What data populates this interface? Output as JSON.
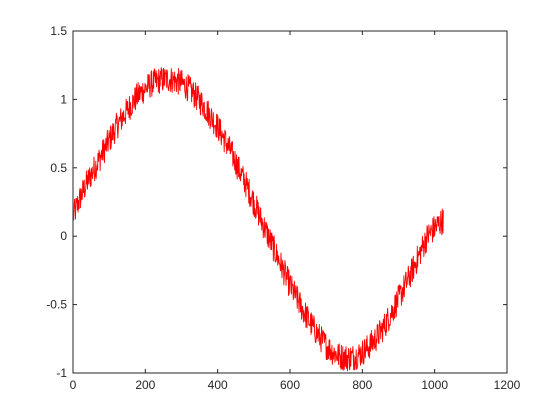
{
  "chart_data": {
    "type": "line",
    "title": "",
    "xlabel": "",
    "ylabel": "",
    "xlim": [
      0,
      1200
    ],
    "ylim": [
      -1,
      1.5
    ],
    "xticks": [
      0,
      200,
      400,
      600,
      800,
      1000,
      1200
    ],
    "xtick_labels": [
      "0",
      "200",
      "400",
      "600",
      "800",
      "1000",
      "1200"
    ],
    "yticks": [
      -1,
      -0.5,
      0,
      0.5,
      1,
      1.5
    ],
    "ytick_labels": [
      "-1",
      "-0.5",
      "0",
      "0.5",
      "1",
      "1.5"
    ],
    "grid": false,
    "series": [
      {
        "color": "#ff0000",
        "x": [
          1,
          20,
          40,
          60,
          80,
          100,
          120,
          140,
          160,
          180,
          200,
          220,
          240,
          260,
          280,
          300,
          320,
          340,
          360,
          380,
          400,
          420,
          440,
          460,
          480,
          500,
          520,
          540,
          560,
          580,
          600,
          620,
          640,
          660,
          680,
          700,
          720,
          740,
          760,
          780,
          800,
          820,
          840,
          860,
          880,
          900,
          920,
          940,
          960,
          980,
          1000,
          1024
        ],
        "y": [
          0.15,
          0.28,
          0.4,
          0.5,
          0.6,
          0.7,
          0.8,
          0.88,
          0.96,
          1.03,
          1.08,
          1.12,
          1.14,
          1.15,
          1.14,
          1.12,
          1.08,
          1.02,
          0.96,
          0.88,
          0.8,
          0.7,
          0.6,
          0.48,
          0.37,
          0.25,
          0.12,
          0.0,
          -0.12,
          -0.24,
          -0.36,
          -0.46,
          -0.56,
          -0.65,
          -0.73,
          -0.8,
          -0.85,
          -0.88,
          -0.89,
          -0.88,
          -0.85,
          -0.8,
          -0.74,
          -0.66,
          -0.56,
          -0.46,
          -0.35,
          -0.24,
          -0.12,
          0.0,
          0.06,
          0.12
        ],
        "noise_amplitude": 0.1
      }
    ]
  }
}
